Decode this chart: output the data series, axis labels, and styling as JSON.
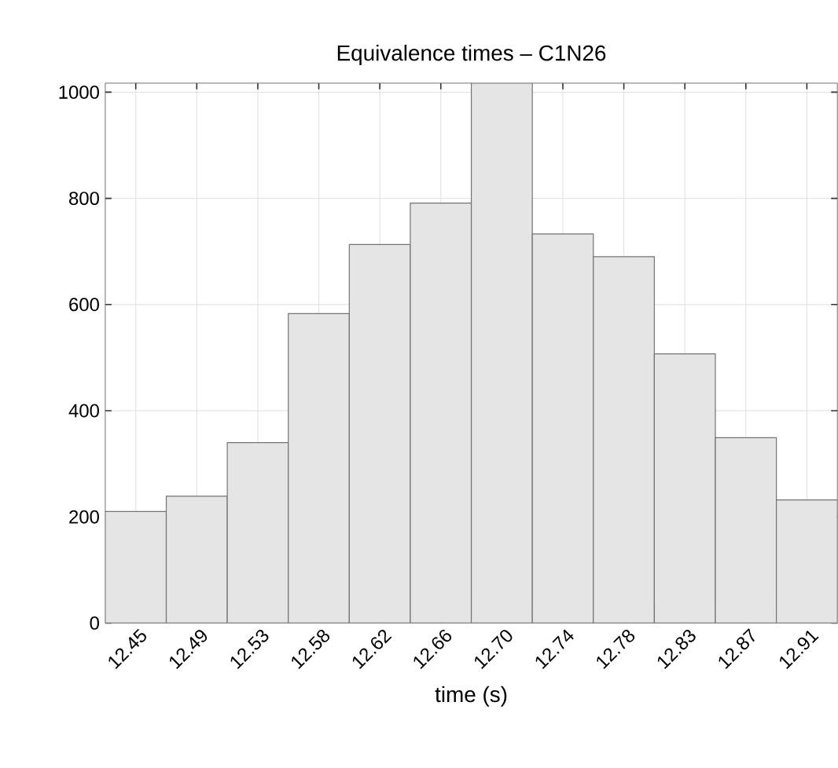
{
  "chart_data": {
    "type": "bar",
    "title": "Equivalence times – C1N26",
    "xlabel": "time (s)",
    "categories": [
      "12.45",
      "12.49",
      "12.53",
      "12.58",
      "12.62",
      "12.66",
      "12.70",
      "12.74",
      "12.78",
      "12.83",
      "12.87",
      "12.91"
    ],
    "values": [
      210,
      239,
      340,
      583,
      713,
      791,
      1017,
      733,
      690,
      507,
      349,
      232
    ],
    "color": "#e5e5e5",
    "ylim": [
      0,
      1017
    ],
    "yticks": [
      0,
      200,
      400,
      600,
      800,
      1000
    ],
    "grid": true
  }
}
